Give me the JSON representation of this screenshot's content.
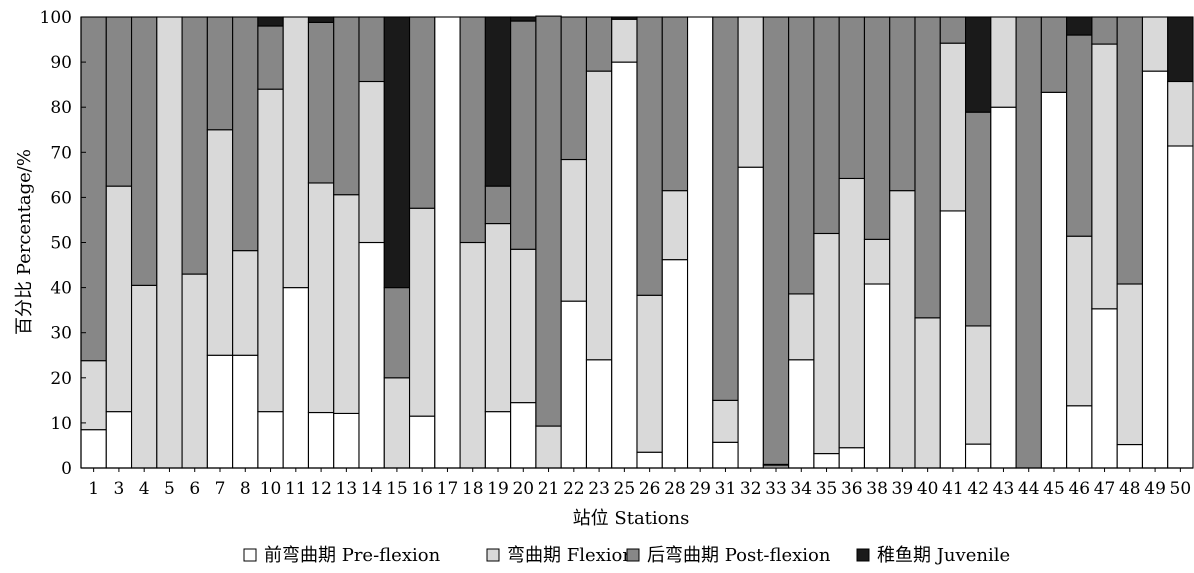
{
  "chart_data": {
    "type": "bar",
    "stacked": true,
    "percent": true,
    "xlabel": "站位 Stations",
    "ylabel": "百分比 Percentage/%",
    "ylim": [
      0,
      100
    ],
    "yticks": [
      0,
      10,
      20,
      30,
      40,
      50,
      60,
      70,
      80,
      90,
      100
    ],
    "grid": false,
    "legend_position": "bottom",
    "categories": [
      "1",
      "3",
      "4",
      "5",
      "6",
      "7",
      "8",
      "10",
      "11",
      "12",
      "13",
      "14",
      "15",
      "16",
      "17",
      "18",
      "19",
      "20",
      "21",
      "22",
      "23",
      "25",
      "26",
      "28",
      "29",
      "31",
      "32",
      "33",
      "34",
      "35",
      "36",
      "38",
      "39",
      "40",
      "41",
      "42",
      "43",
      "44",
      "45",
      "46",
      "47",
      "48",
      "49",
      "50"
    ],
    "series": [
      {
        "name": "前弯曲期 Pre-flexion",
        "color": "#ffffff",
        "values": [
          8.5,
          12.5,
          0,
          0,
          0,
          25,
          25,
          12.5,
          40,
          12.3,
          12.1,
          50,
          0,
          11.5,
          100,
          0,
          12.5,
          14.5,
          0,
          37,
          24,
          90,
          3.5,
          46.2,
          100,
          5.7,
          66.7,
          0.5,
          24,
          3.2,
          4.5,
          40.8,
          0,
          0,
          57,
          5.3,
          80,
          0,
          83.3,
          13.8,
          35.3,
          5.2,
          88,
          71.4
        ]
      },
      {
        "name": "弯曲期 Flexion",
        "color": "#d9d9d9",
        "values": [
          15.3,
          50,
          40.5,
          100,
          43,
          50,
          23.2,
          71.5,
          60,
          50.9,
          48.5,
          35.7,
          20,
          46.1,
          0,
          50,
          41.7,
          34,
          9.3,
          31.4,
          64,
          9.5,
          34.8,
          15.3,
          0,
          9.3,
          33.3,
          0.3,
          14.6,
          48.8,
          59.7,
          9.9,
          61.5,
          33.3,
          37.2,
          26.2,
          20,
          0,
          0,
          37.6,
          58.7,
          35.6,
          12,
          14.3
        ]
      },
      {
        "name": "后弯曲期 Post-flexion",
        "color": "#878787",
        "values": [
          76.2,
          37.5,
          59.5,
          0,
          57,
          25,
          51.8,
          14,
          0,
          35.6,
          39.4,
          14.3,
          20,
          42.4,
          0,
          50,
          8.3,
          50.6,
          90.9,
          31.6,
          12,
          0,
          61.7,
          38.5,
          0,
          85,
          0,
          99.2,
          61.4,
          48,
          35.8,
          49.3,
          38.5,
          66.7,
          5.8,
          47.4,
          0,
          100,
          16.7,
          44.6,
          6,
          59.2,
          0,
          0
        ]
      },
      {
        "name": "稚鱼期 Juvenile",
        "color": "#1a1a1a",
        "values": [
          0,
          0,
          0,
          0,
          0,
          0,
          0,
          2,
          0,
          1.2,
          0,
          0,
          60,
          0,
          0,
          0,
          37.5,
          0.9,
          0,
          0,
          0,
          0.5,
          0,
          0,
          0,
          0,
          0,
          0,
          0,
          0,
          0,
          0,
          0,
          0,
          0,
          21.1,
          0,
          0,
          0,
          4,
          0,
          0,
          0,
          14.3
        ]
      }
    ]
  }
}
